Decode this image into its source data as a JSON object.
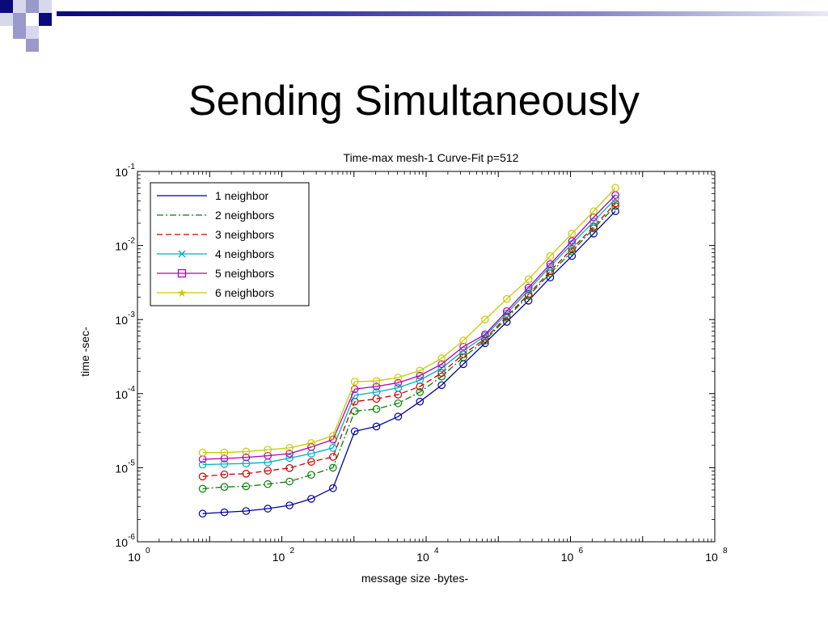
{
  "slide": {
    "title": "Sending Simultaneously",
    "accent_colors": [
      "#0a0a7a",
      "#9999cc",
      "#d8d8ec"
    ]
  },
  "chart_data": {
    "type": "line",
    "title": "Time-max mesh-1 Curve-Fit p=512",
    "xlabel": "message size -bytes-",
    "ylabel": "time -sec-",
    "xscale": "log",
    "yscale": "log",
    "xlim": [
      1,
      100000000
    ],
    "ylim": [
      1e-06,
      0.1
    ],
    "x_ticks": [
      "10",
      "10",
      "10",
      "10",
      "10"
    ],
    "x_tick_exponents": [
      "0",
      "2",
      "4",
      "6",
      "8"
    ],
    "y_ticks": [
      "10",
      "10",
      "10",
      "10",
      "10",
      "10"
    ],
    "y_tick_exponents": [
      "-1",
      "-2",
      "-3",
      "-4",
      "-5",
      "-6"
    ],
    "legend_position": "top-left",
    "marker": "o",
    "x": [
      8,
      16,
      32,
      64,
      128,
      256,
      512,
      1024,
      2048,
      4096,
      8192,
      16384,
      32768,
      65536,
      131072,
      262144,
      524288,
      1048576,
      2097152,
      4194304
    ],
    "series": [
      {
        "name": "1 neighbor",
        "color": "#0000a0",
        "style": "solid",
        "legend_marker": "none",
        "values": [
          2.4e-06,
          2.5e-06,
          2.6e-06,
          2.8e-06,
          3.1e-06,
          3.8e-06,
          5.3e-06,
          3.1e-05,
          3.6e-05,
          4.9e-05,
          7.8e-05,
          0.00013,
          0.00025,
          0.00048,
          0.00093,
          0.0018,
          0.0037,
          0.0072,
          0.0145,
          0.029
        ]
      },
      {
        "name": "2 neighbors",
        "color": "#008000",
        "style": "dashdot",
        "legend_marker": "none",
        "values": [
          5.2e-06,
          5.5e-06,
          5.6e-06,
          6e-06,
          6.5e-06,
          8e-06,
          1e-05,
          5.8e-05,
          6.2e-05,
          7.4e-05,
          0.000105,
          0.00017,
          0.00031,
          0.00052,
          0.00105,
          0.0021,
          0.0042,
          0.0083,
          0.017,
          0.034
        ]
      },
      {
        "name": "3 neighbors",
        "color": "#cc0000",
        "style": "dashed",
        "legend_marker": "none",
        "values": [
          7.6e-06,
          8.1e-06,
          8.3e-06,
          9.1e-06,
          9.9e-06,
          1.2e-05,
          1.4e-05,
          7.8e-05,
          8.5e-05,
          9.7e-05,
          0.000125,
          0.00019,
          0.00034,
          0.00055,
          0.0011,
          0.0022,
          0.0045,
          0.009,
          0.018,
          0.037
        ]
      },
      {
        "name": "4 neighbors",
        "color": "#00b0c0",
        "style": "solid",
        "legend_marker": "x",
        "values": [
          1.1e-05,
          1.12e-05,
          1.14e-05,
          1.18e-05,
          1.35e-05,
          1.55e-05,
          1.85e-05,
          9.5e-05,
          0.000105,
          0.00012,
          0.000152,
          0.00022,
          0.00038,
          0.0006,
          0.0012,
          0.0025,
          0.0052,
          0.0105,
          0.021,
          0.043
        ]
      },
      {
        "name": "5 neighbors",
        "color": "#b000b0",
        "style": "solid",
        "legend_marker": "square",
        "values": [
          1.3e-05,
          1.33e-05,
          1.38e-05,
          1.45e-05,
          1.55e-05,
          1.9e-05,
          2.4e-05,
          0.000115,
          0.000125,
          0.00014,
          0.000175,
          0.00025,
          0.00043,
          0.00063,
          0.0013,
          0.0027,
          0.0056,
          0.0115,
          0.024,
          0.048
        ]
      },
      {
        "name": "6 neighbors",
        "color": "#c8c800",
        "style": "solid",
        "legend_marker": "star",
        "values": [
          1.6e-05,
          1.6e-05,
          1.65e-05,
          1.75e-05,
          1.85e-05,
          2.15e-05,
          2.7e-05,
          0.000145,
          0.000148,
          0.000165,
          0.000205,
          0.0003,
          0.00052,
          0.001,
          0.0019,
          0.0035,
          0.0072,
          0.0145,
          0.029,
          0.06
        ]
      }
    ]
  }
}
